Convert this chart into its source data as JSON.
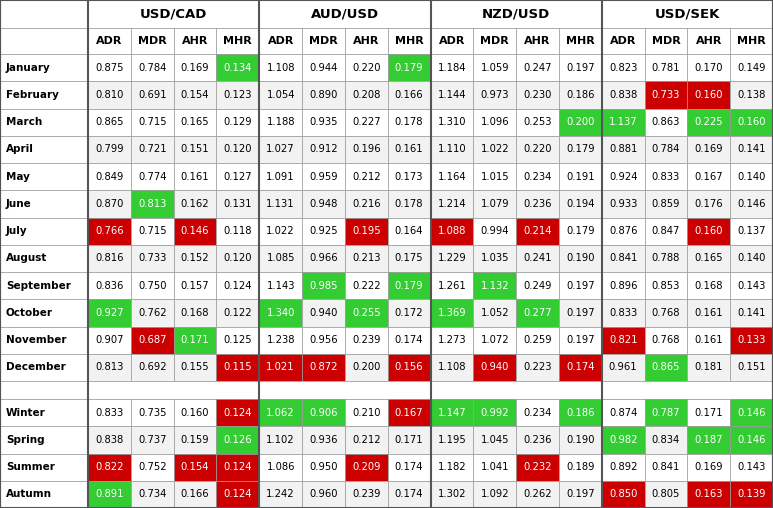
{
  "title_row": [
    "USD/CAD",
    "AUD/USD",
    "NZD/USD",
    "USD/SEK"
  ],
  "col_headers": [
    "ADR",
    "MDR",
    "AHR",
    "MHR",
    "ADR",
    "MDR",
    "AHR",
    "MHR",
    "ADR",
    "MDR",
    "AHR",
    "MHR",
    "ADR",
    "MDR",
    "AHR",
    "MHR"
  ],
  "row_labels": [
    "January",
    "February",
    "March",
    "April",
    "May",
    "June",
    "July",
    "August",
    "September",
    "October",
    "November",
    "December",
    "",
    "Winter",
    "Spring",
    "Summer",
    "Autumn"
  ],
  "data": [
    [
      0.875,
      0.784,
      0.169,
      0.134,
      1.108,
      0.944,
      0.22,
      0.179,
      1.184,
      1.059,
      0.247,
      0.197,
      0.823,
      0.781,
      0.17,
      0.149
    ],
    [
      0.81,
      0.691,
      0.154,
      0.123,
      1.054,
      0.89,
      0.208,
      0.166,
      1.144,
      0.973,
      0.23,
      0.186,
      0.838,
      0.733,
      0.16,
      0.138
    ],
    [
      0.865,
      0.715,
      0.165,
      0.129,
      1.188,
      0.935,
      0.227,
      0.178,
      1.31,
      1.096,
      0.253,
      0.2,
      1.137,
      0.863,
      0.225,
      0.16
    ],
    [
      0.799,
      0.721,
      0.151,
      0.12,
      1.027,
      0.912,
      0.196,
      0.161,
      1.11,
      1.022,
      0.22,
      0.179,
      0.881,
      0.784,
      0.169,
      0.141
    ],
    [
      0.849,
      0.774,
      0.161,
      0.127,
      1.091,
      0.959,
      0.212,
      0.173,
      1.164,
      1.015,
      0.234,
      0.191,
      0.924,
      0.833,
      0.167,
      0.14
    ],
    [
      0.87,
      0.813,
      0.162,
      0.131,
      1.131,
      0.948,
      0.216,
      0.178,
      1.214,
      1.079,
      0.236,
      0.194,
      0.933,
      0.859,
      0.176,
      0.146
    ],
    [
      0.766,
      0.715,
      0.146,
      0.118,
      1.022,
      0.925,
      0.195,
      0.164,
      1.088,
      0.994,
      0.214,
      0.179,
      0.876,
      0.847,
      0.16,
      0.137
    ],
    [
      0.816,
      0.733,
      0.152,
      0.12,
      1.085,
      0.966,
      0.213,
      0.175,
      1.229,
      1.035,
      0.241,
      0.19,
      0.841,
      0.788,
      0.165,
      0.14
    ],
    [
      0.836,
      0.75,
      0.157,
      0.124,
      1.143,
      0.985,
      0.222,
      0.179,
      1.261,
      1.132,
      0.249,
      0.197,
      0.896,
      0.853,
      0.168,
      0.143
    ],
    [
      0.927,
      0.762,
      0.168,
      0.122,
      1.34,
      0.94,
      0.255,
      0.172,
      1.369,
      1.052,
      0.277,
      0.197,
      0.833,
      0.768,
      0.161,
      0.141
    ],
    [
      0.907,
      0.687,
      0.171,
      0.125,
      1.238,
      0.956,
      0.239,
      0.174,
      1.273,
      1.072,
      0.259,
      0.197,
      0.821,
      0.768,
      0.161,
      0.133
    ],
    [
      0.813,
      0.692,
      0.155,
      0.115,
      1.021,
      0.872,
      0.2,
      0.156,
      1.108,
      0.94,
      0.223,
      0.174,
      0.961,
      0.865,
      0.181,
      0.151
    ],
    [
      null,
      null,
      null,
      null,
      null,
      null,
      null,
      null,
      null,
      null,
      null,
      null,
      null,
      null,
      null,
      null
    ],
    [
      0.833,
      0.735,
      0.16,
      0.124,
      1.062,
      0.906,
      0.21,
      0.167,
      1.147,
      0.992,
      0.234,
      0.186,
      0.874,
      0.787,
      0.171,
      0.146
    ],
    [
      0.838,
      0.737,
      0.159,
      0.126,
      1.102,
      0.936,
      0.212,
      0.171,
      1.195,
      1.045,
      0.236,
      0.19,
      0.982,
      0.834,
      0.187,
      0.146
    ],
    [
      0.822,
      0.752,
      0.154,
      0.124,
      1.086,
      0.95,
      0.209,
      0.174,
      1.182,
      1.041,
      0.232,
      0.189,
      0.892,
      0.841,
      0.169,
      0.143
    ],
    [
      0.891,
      0.734,
      0.166,
      0.124,
      1.242,
      0.96,
      0.239,
      0.174,
      1.302,
      1.092,
      0.262,
      0.197,
      0.85,
      0.805,
      0.163,
      0.139
    ]
  ],
  "cell_colors": [
    [
      "none",
      "none",
      "none",
      "green",
      "none",
      "none",
      "none",
      "green",
      "none",
      "none",
      "none",
      "none",
      "none",
      "none",
      "none",
      "none"
    ],
    [
      "none",
      "none",
      "none",
      "none",
      "none",
      "none",
      "none",
      "none",
      "none",
      "none",
      "none",
      "none",
      "none",
      "red",
      "red",
      "none"
    ],
    [
      "none",
      "none",
      "none",
      "none",
      "none",
      "none",
      "none",
      "none",
      "none",
      "none",
      "none",
      "green",
      "green",
      "none",
      "green",
      "green"
    ],
    [
      "none",
      "none",
      "none",
      "none",
      "none",
      "none",
      "none",
      "none",
      "none",
      "none",
      "none",
      "none",
      "none",
      "none",
      "none",
      "none"
    ],
    [
      "none",
      "none",
      "none",
      "none",
      "none",
      "none",
      "none",
      "none",
      "none",
      "none",
      "none",
      "none",
      "none",
      "none",
      "none",
      "none"
    ],
    [
      "none",
      "green",
      "none",
      "none",
      "none",
      "none",
      "none",
      "none",
      "none",
      "none",
      "none",
      "none",
      "none",
      "none",
      "none",
      "none"
    ],
    [
      "red",
      "none",
      "red",
      "none",
      "none",
      "none",
      "red",
      "none",
      "red",
      "none",
      "red",
      "none",
      "none",
      "none",
      "red",
      "none"
    ],
    [
      "none",
      "none",
      "none",
      "none",
      "none",
      "none",
      "none",
      "none",
      "none",
      "none",
      "none",
      "none",
      "none",
      "none",
      "none",
      "none"
    ],
    [
      "none",
      "none",
      "none",
      "none",
      "none",
      "green",
      "none",
      "green",
      "none",
      "green",
      "none",
      "none",
      "none",
      "none",
      "none",
      "none"
    ],
    [
      "green",
      "none",
      "none",
      "none",
      "green",
      "none",
      "green",
      "none",
      "green",
      "none",
      "green",
      "none",
      "none",
      "none",
      "none",
      "none"
    ],
    [
      "none",
      "red",
      "green",
      "none",
      "none",
      "none",
      "none",
      "none",
      "none",
      "none",
      "none",
      "none",
      "red",
      "none",
      "none",
      "red"
    ],
    [
      "none",
      "none",
      "none",
      "red",
      "red",
      "red",
      "none",
      "red",
      "none",
      "red",
      "none",
      "red",
      "none",
      "green",
      "none",
      "none"
    ],
    [
      "none",
      "none",
      "none",
      "none",
      "none",
      "none",
      "none",
      "none",
      "none",
      "none",
      "none",
      "none",
      "none",
      "none",
      "none",
      "none"
    ],
    [
      "none",
      "none",
      "none",
      "red",
      "green",
      "green",
      "none",
      "red",
      "green",
      "green",
      "none",
      "green",
      "none",
      "green",
      "none",
      "green"
    ],
    [
      "none",
      "none",
      "none",
      "green",
      "none",
      "none",
      "none",
      "none",
      "none",
      "none",
      "none",
      "none",
      "green",
      "none",
      "green",
      "green"
    ],
    [
      "red",
      "none",
      "red",
      "red",
      "none",
      "none",
      "red",
      "none",
      "none",
      "none",
      "red",
      "none",
      "none",
      "none",
      "none",
      "none"
    ],
    [
      "green",
      "none",
      "none",
      "red",
      "none",
      "none",
      "none",
      "none",
      "none",
      "none",
      "none",
      "none",
      "red",
      "none",
      "red",
      "red"
    ]
  ],
  "green_color": "#33cc33",
  "red_color": "#cc0000",
  "header_bg": "#ffffff",
  "alt_row_bg": "#f2f2f2",
  "white_bg": "#ffffff",
  "border_color": "#999999",
  "sep_color": "#555555",
  "label_bg": "#ffffff",
  "title_bg": "#ffffff",
  "fig_w": 7.73,
  "fig_h": 5.08,
  "dpi": 100
}
